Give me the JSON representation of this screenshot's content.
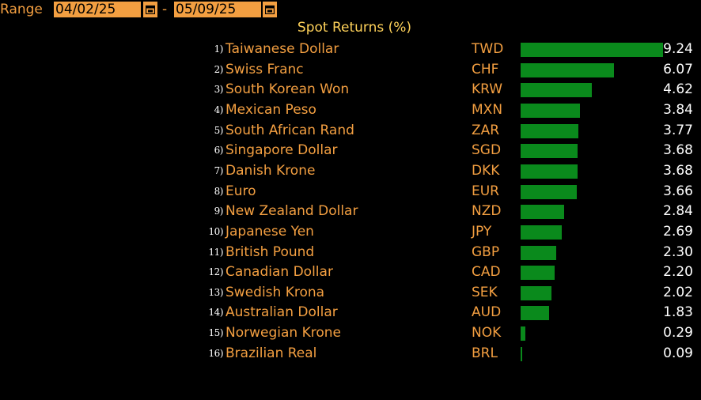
{
  "header": {
    "range_label": "Range",
    "start_date": "04/02/25",
    "separator": "-",
    "end_date": "05/09/25"
  },
  "colors": {
    "background": "#000000",
    "label": "#f39f41",
    "title": "#ffd25a",
    "bar": "#0a8a1c",
    "value": "#ffffff"
  },
  "chart_data": {
    "type": "bar",
    "orientation": "horizontal",
    "title": "Spot Returns (%)",
    "ranks": [
      "1)",
      "2)",
      "3)",
      "4)",
      "5)",
      "6)",
      "7)",
      "8)",
      "9)",
      "10)",
      "11)",
      "12)",
      "13)",
      "14)",
      "15)",
      "16)"
    ],
    "categories": [
      "Taiwanese Dollar",
      "Swiss Franc",
      "South Korean Won",
      "Mexican Peso",
      "South African Rand",
      "Singapore Dollar",
      "Danish Krone",
      "Euro",
      "New Zealand Dollar",
      "Japanese Yen",
      "British Pound",
      "Canadian Dollar",
      "Swedish Krona",
      "Australian Dollar",
      "Norwegian Krone",
      "Brazilian Real"
    ],
    "codes": [
      "TWD",
      "CHF",
      "KRW",
      "MXN",
      "ZAR",
      "SGD",
      "DKK",
      "EUR",
      "NZD",
      "JPY",
      "GBP",
      "CAD",
      "SEK",
      "AUD",
      "NOK",
      "BRL"
    ],
    "values": [
      9.24,
      6.07,
      4.62,
      3.84,
      3.77,
      3.68,
      3.68,
      3.66,
      2.84,
      2.69,
      2.3,
      2.2,
      2.02,
      1.83,
      0.29,
      0.09
    ],
    "value_labels": [
      "9.24",
      "6.07",
      "4.62",
      "3.84",
      "3.77",
      "3.68",
      "3.68",
      "3.66",
      "2.84",
      "2.69",
      "2.30",
      "2.20",
      "2.02",
      "1.83",
      "0.29",
      "0.09"
    ],
    "xlim": [
      0,
      9.24
    ]
  }
}
